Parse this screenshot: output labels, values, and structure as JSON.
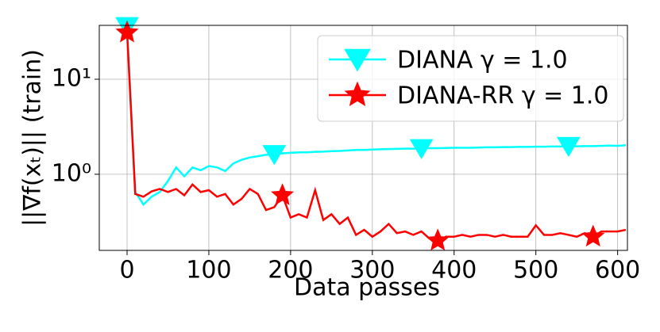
{
  "chart_data": {
    "type": "line",
    "x": [
      0,
      10,
      20,
      30,
      40,
      50,
      60,
      70,
      80,
      90,
      100,
      110,
      120,
      130,
      140,
      150,
      160,
      170,
      180,
      190,
      200,
      210,
      220,
      230,
      240,
      250,
      260,
      270,
      280,
      290,
      300,
      310,
      320,
      330,
      340,
      350,
      360,
      370,
      380,
      390,
      400,
      410,
      420,
      430,
      440,
      450,
      460,
      470,
      480,
      490,
      500,
      510,
      520,
      530,
      540,
      550,
      560,
      570,
      580,
      590,
      600,
      610
    ],
    "series": [
      {
        "name": "DIANA γ = 1.0",
        "color": "#00ffff",
        "marker": "triangle-down",
        "marker_every": 18,
        "values": [
          36,
          0.65,
          0.48,
          0.58,
          0.65,
          0.85,
          1.18,
          0.95,
          1.18,
          1.1,
          1.22,
          1.18,
          1.08,
          1.3,
          1.42,
          1.5,
          1.55,
          1.6,
          1.62,
          1.66,
          1.68,
          1.7,
          1.7,
          1.72,
          1.73,
          1.75,
          1.76,
          1.78,
          1.8,
          1.8,
          1.82,
          1.83,
          1.84,
          1.85,
          1.86,
          1.86,
          1.87,
          1.88,
          1.88,
          1.89,
          1.9,
          1.9,
          1.9,
          1.91,
          1.92,
          1.92,
          1.93,
          1.93,
          1.94,
          1.94,
          1.95,
          1.95,
          1.96,
          1.96,
          1.97,
          1.97,
          1.98,
          1.98,
          1.99,
          2.0,
          1.99,
          2.02
        ]
      },
      {
        "name": "DIANA-RR γ = 1.0",
        "color": "#ff0000",
        "marker": "star",
        "marker_every": 19,
        "values": [
          31,
          0.62,
          0.58,
          0.66,
          0.7,
          0.65,
          0.7,
          0.6,
          0.78,
          0.65,
          0.68,
          0.58,
          0.62,
          0.48,
          0.55,
          0.7,
          0.62,
          0.42,
          0.45,
          0.6,
          0.35,
          0.38,
          0.35,
          0.68,
          0.33,
          0.38,
          0.3,
          0.35,
          0.23,
          0.26,
          0.22,
          0.25,
          0.3,
          0.24,
          0.25,
          0.23,
          0.25,
          0.21,
          0.2,
          0.22,
          0.22,
          0.23,
          0.22,
          0.23,
          0.23,
          0.22,
          0.23,
          0.22,
          0.22,
          0.22,
          0.29,
          0.23,
          0.23,
          0.24,
          0.23,
          0.22,
          0.24,
          0.22,
          0.25,
          0.25,
          0.25,
          0.26
        ]
      }
    ],
    "xlabel": "Data passes",
    "ylabel": "||∇f(xₜ)|| (train)",
    "xlim": [
      -34,
      612
    ],
    "ylim": [
      0.158,
      36.9
    ],
    "log_y": true,
    "xticks": [
      0,
      100,
      200,
      300,
      400,
      500,
      600
    ],
    "yticks": [
      {
        "value": 1,
        "label": "10⁰"
      },
      {
        "value": 10,
        "label": "10¹"
      }
    ],
    "grid": true,
    "legend": "upper right"
  }
}
